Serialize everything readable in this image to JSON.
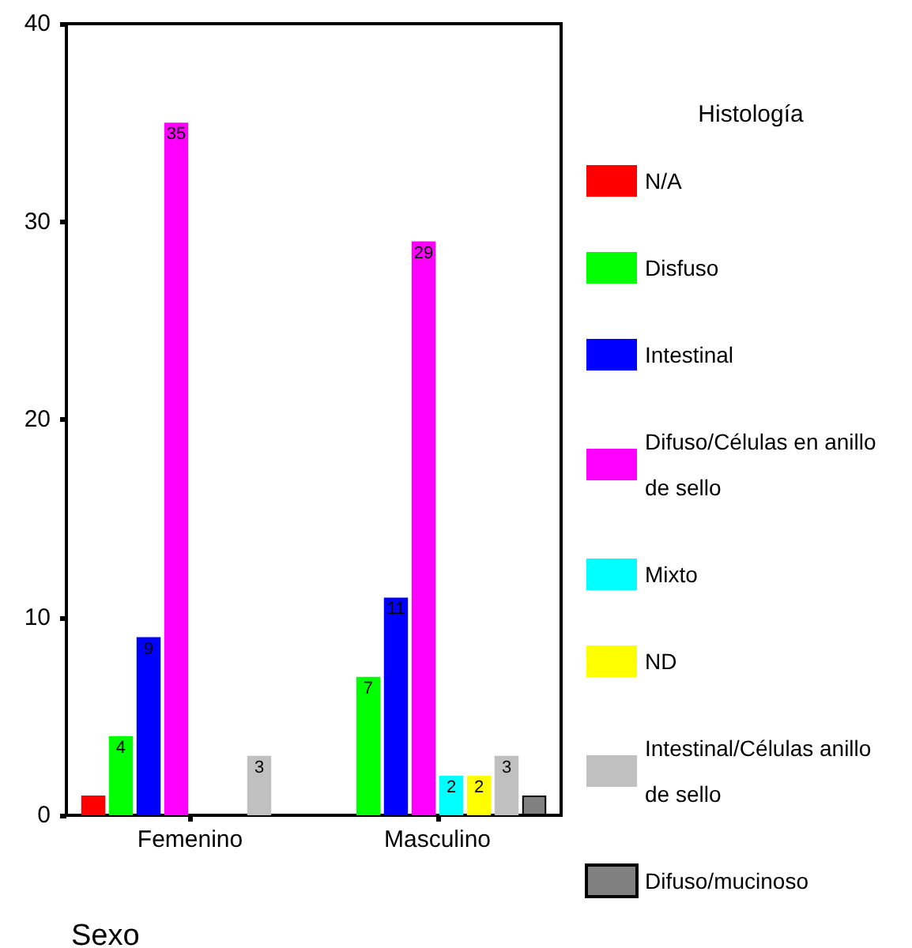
{
  "chart_data": {
    "type": "bar",
    "xlabel": "Sexo",
    "legend_title": "Histología",
    "categories": [
      "Femenino",
      "Masculino"
    ],
    "series": [
      {
        "name": "N/A",
        "color": "#ff0000",
        "values": [
          1,
          null
        ],
        "value_labels": [
          null,
          null
        ]
      },
      {
        "name": "Disfuso",
        "color": "#00ff00",
        "values": [
          4,
          7
        ],
        "value_labels": [
          "4",
          "7"
        ]
      },
      {
        "name": "Intestinal",
        "color": "#0000ff",
        "values": [
          9,
          11
        ],
        "value_labels": [
          "9",
          "11"
        ]
      },
      {
        "name": "Difuso/Células en anillo de sello",
        "color": "#ff00ff",
        "values": [
          35,
          29
        ],
        "value_labels": [
          "35",
          "29"
        ]
      },
      {
        "name": "Mixto",
        "color": "#00ffff",
        "values": [
          null,
          2
        ],
        "value_labels": [
          null,
          "2"
        ]
      },
      {
        "name": "ND",
        "color": "#ffff00",
        "values": [
          null,
          2
        ],
        "value_labels": [
          null,
          "2"
        ]
      },
      {
        "name": "Intestinal/Células anillo de sello",
        "color": "#c0c0c0",
        "values": [
          3,
          3
        ],
        "value_labels": [
          "3",
          "3"
        ]
      },
      {
        "name": "Difuso/mucinoso",
        "color": "#808080",
        "values": [
          null,
          1
        ],
        "value_labels": [
          null,
          null
        ]
      }
    ],
    "ylim": [
      0,
      40
    ],
    "yticks": [
      0,
      10,
      20,
      30,
      40
    ],
    "grid": false,
    "legend": "right"
  }
}
